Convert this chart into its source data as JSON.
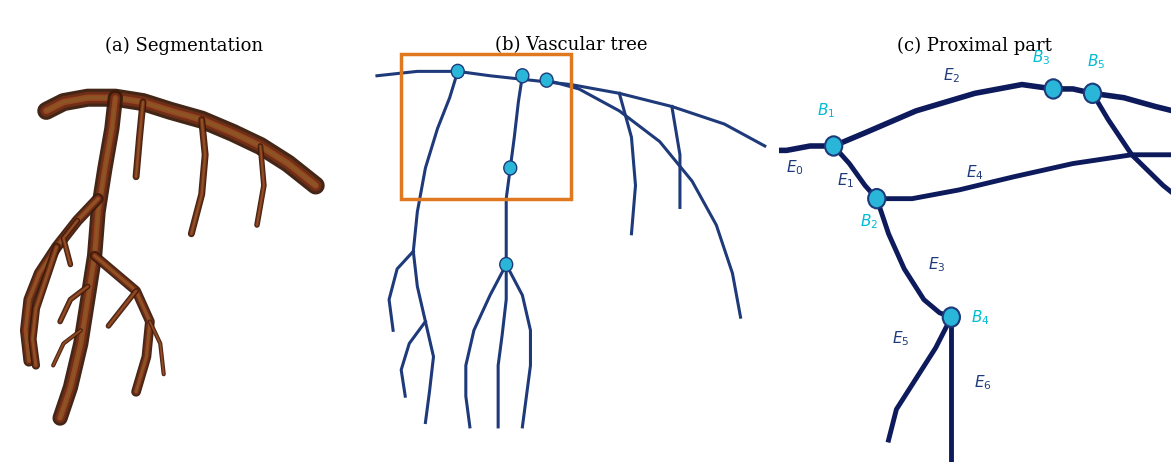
{
  "title_a": "(a) Segmentation",
  "title_b": "(b) Vascular tree",
  "title_c": "(c) Proximal part",
  "title_fontsize": 13,
  "bg_color": "#ffffff",
  "line_color_b": "#1e3a7a",
  "node_color": "#29b6d8",
  "node_edge_color": "#1e3a7a",
  "label_color_dark": "#1e3a7a",
  "label_color_cyan": "#00bcd4",
  "orange_box_color": "#e07820"
}
